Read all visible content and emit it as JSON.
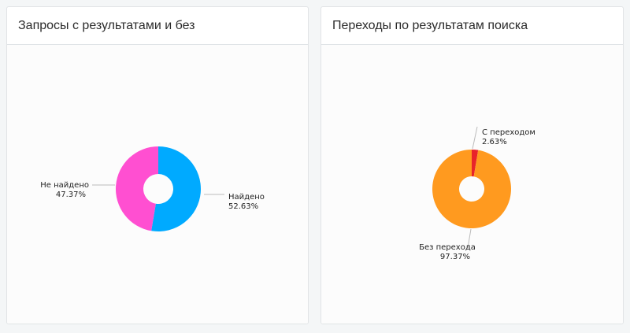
{
  "charts": [
    {
      "title": "Запросы с результатами и без",
      "chart_data": {
        "type": "pie",
        "donut": true,
        "categories": [
          "Найдено",
          "Не найдено"
        ],
        "values": [
          52.63,
          47.37
        ],
        "value_labels": [
          "52.63%",
          "47.37%"
        ],
        "colors": [
          "#00aaff",
          "#ff4fd1"
        ]
      }
    },
    {
      "title": "Переходы по результатам поиска",
      "chart_data": {
        "type": "pie",
        "donut": true,
        "categories": [
          "С переходом",
          "Без перехода"
        ],
        "values": [
          2.63,
          97.37
        ],
        "value_labels": [
          "2.63%",
          "97.37%"
        ],
        "colors": [
          "#e8232a",
          "#ff9a1f"
        ]
      }
    }
  ]
}
